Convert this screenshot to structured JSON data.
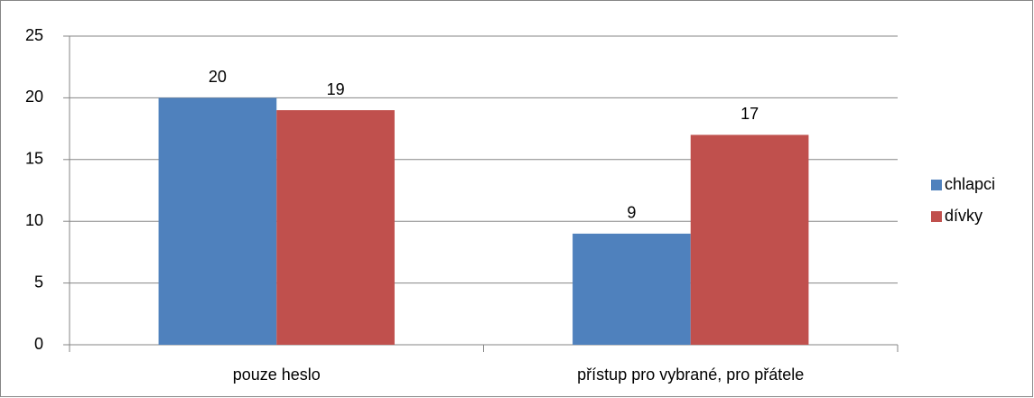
{
  "chart_data": {
    "type": "bar",
    "categories": [
      "pouze heslo",
      "přístup pro vybrané, pro přátele"
    ],
    "series": [
      {
        "name": "chlapci",
        "color": "#4f81bd",
        "values": [
          20,
          9
        ]
      },
      {
        "name": "dívky",
        "color": "#c0504d",
        "values": [
          19,
          17
        ]
      }
    ],
    "ylim": [
      0,
      25
    ],
    "yticks": [
      0,
      5,
      10,
      15,
      20,
      25
    ],
    "grid": true,
    "legend": "right"
  }
}
